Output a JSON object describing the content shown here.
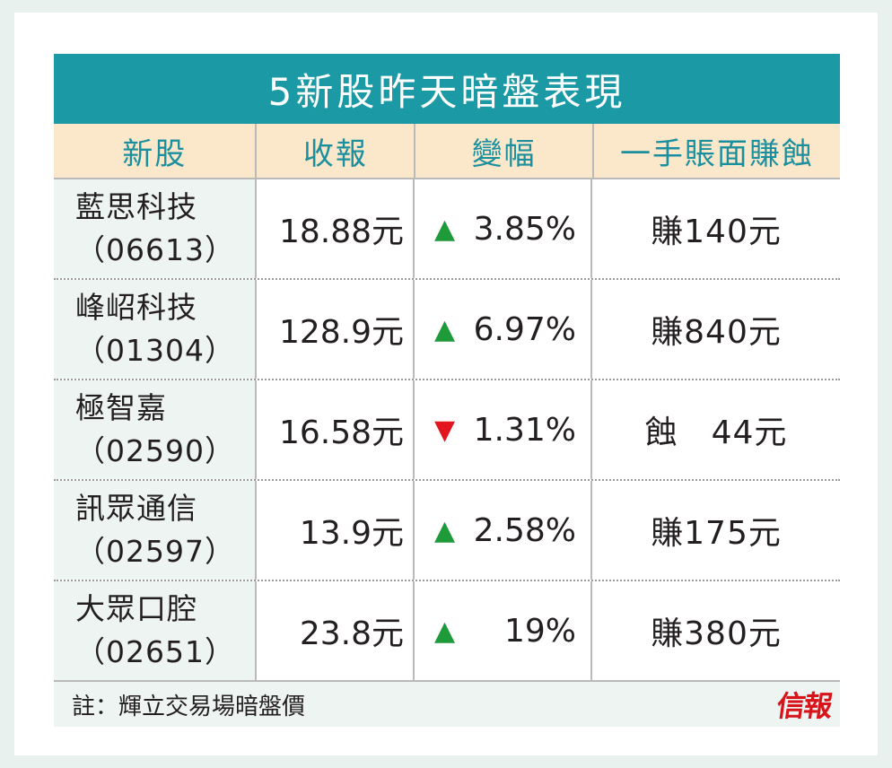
{
  "title": "5新股昨天暗盤表現",
  "headers": {
    "name": "新股",
    "close": "收報",
    "change": "變幅",
    "lot": "一手賬面賺蝕"
  },
  "rows": [
    {
      "name": "藍思科技",
      "code": "（06613）",
      "close": "18.88元",
      "direction": "up",
      "change": "3.85%",
      "pl": "賺140元"
    },
    {
      "name": "峰岹科技",
      "code": "（01304）",
      "close": "128.9元",
      "direction": "up",
      "change": "6.97%",
      "pl": "賺840元"
    },
    {
      "name": "極智嘉",
      "code": "（02590）",
      "close": "16.58元",
      "direction": "down",
      "change": "1.31%",
      "pl": "蝕　44元"
    },
    {
      "name": "訊眾通信",
      "code": "（02597）",
      "close": "13.9元",
      "direction": "up",
      "change": "2.58%",
      "pl": "賺175元"
    },
    {
      "name": "大眾口腔",
      "code": "（02651）",
      "close": "23.8元",
      "direction": "up",
      "change": "19%",
      "pl": "賺380元"
    }
  ],
  "footer": {
    "note": "註：輝立交易場暗盤價",
    "logo": "信報"
  },
  "colors": {
    "teal": "#1b9aa6",
    "header_bg": "#fbe7ca",
    "up": "#1f9a3a",
    "down": "#e3161f",
    "logo": "#d7141a"
  }
}
